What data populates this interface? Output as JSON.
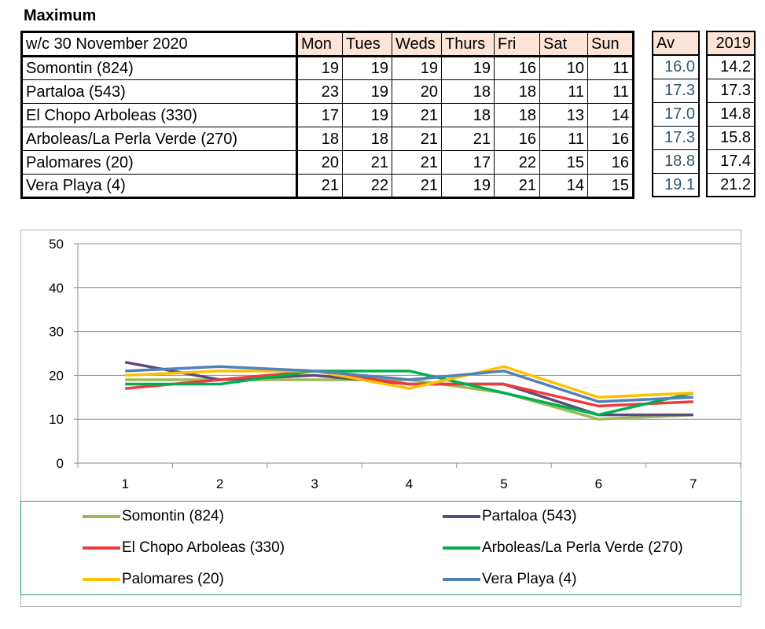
{
  "heading": "Maximum",
  "table": {
    "week_label": "w/c  30 November 2020",
    "days": [
      "Mon",
      "Tues",
      "Weds",
      "Thurs",
      "Fri",
      "Sat",
      "Sun"
    ],
    "avg_header": "Av",
    "prev_header": "2019",
    "rows": [
      {
        "name": "Somontin (824)",
        "values": [
          "19",
          "19",
          "19",
          "19",
          "16",
          "10",
          "11"
        ],
        "avg": "16.0",
        "prev": "14.2"
      },
      {
        "name": "Partaloa (543)",
        "values": [
          "23",
          "19",
          "20",
          "18",
          "18",
          "11",
          "11"
        ],
        "avg": "17.3",
        "prev": "17.3"
      },
      {
        "name": "El Chopo  Arboleas (330)",
        "values": [
          "17",
          "19",
          "21",
          "18",
          "18",
          "13",
          "14"
        ],
        "avg": "17.0",
        "prev": "14.8"
      },
      {
        "name": "Arboleas/La Perla Verde (270)",
        "values": [
          "18",
          "18",
          "21",
          "21",
          "16",
          "11",
          "16"
        ],
        "avg": "17.3",
        "prev": "15.8"
      },
      {
        "name": "Palomares (20)",
        "values": [
          "20",
          "21",
          "21",
          "17",
          "22",
          "15",
          "16"
        ],
        "avg": "18.8",
        "prev": "17.4"
      },
      {
        "name": "Vera Playa (4)",
        "values": [
          "21",
          "22",
          "21",
          "19",
          "21",
          "14",
          "15"
        ],
        "avg": "19.1",
        "prev": "21.2"
      }
    ]
  },
  "chart_data": {
    "type": "line",
    "title": "",
    "xlabel": "",
    "ylabel": "",
    "x": [
      1,
      2,
      3,
      4,
      5,
      6,
      7
    ],
    "ylim": [
      0,
      50
    ],
    "yticks": [
      0,
      10,
      20,
      30,
      40,
      50
    ],
    "grid": true,
    "legend_position": "bottom",
    "series": [
      {
        "name": "Somontin (824)",
        "color": "#9bbb59",
        "values": [
          19,
          19,
          19,
          19,
          16,
          10,
          11
        ]
      },
      {
        "name": "Partaloa (543)",
        "color": "#604a7b",
        "values": [
          23,
          19,
          20,
          18,
          18,
          11,
          11
        ]
      },
      {
        "name": "El Chopo  Arboleas (330)",
        "color": "#ee3b3b",
        "values": [
          17,
          19,
          21,
          18,
          18,
          13,
          14
        ]
      },
      {
        "name": "Arboleas/La Perla Verde (270)",
        "color": "#00b050",
        "values": [
          18,
          18,
          21,
          21,
          16,
          11,
          16
        ]
      },
      {
        "name": "Palomares (20)",
        "color": "#ffc000",
        "values": [
          20,
          21,
          21,
          17,
          22,
          15,
          16
        ]
      },
      {
        "name": "Vera Playa (4)",
        "color": "#4f81bd",
        "values": [
          21,
          22,
          21,
          19,
          21,
          14,
          15
        ]
      }
    ]
  }
}
